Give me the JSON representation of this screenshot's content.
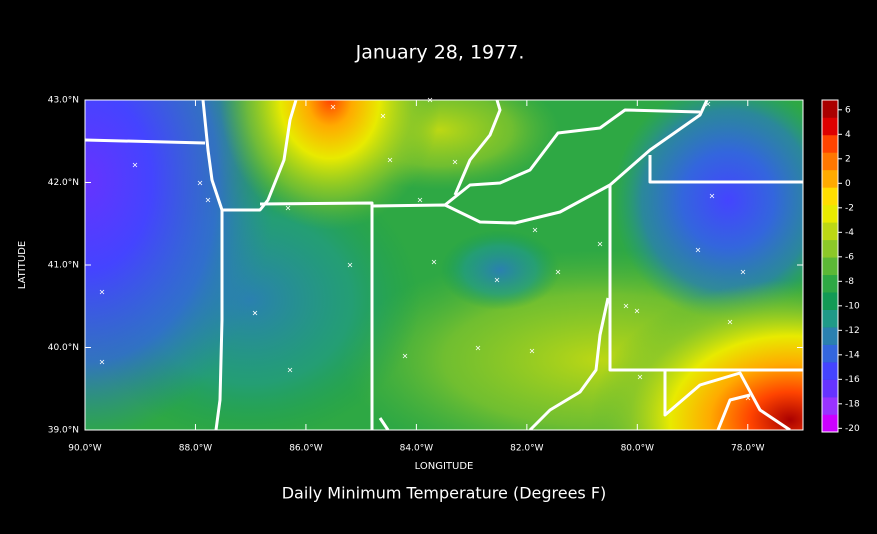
{
  "map": {
    "title": "January 28, 1977.",
    "subtitle": "Daily Minimum Temperature (Degrees F)",
    "x_label": "LONGITUDE",
    "y_label": "LATITUDE",
    "xlim": [
      -90,
      -77
    ],
    "ylim": [
      39,
      43
    ],
    "xticks": [
      {
        "value": -90,
        "label": "90.0°W"
      },
      {
        "value": -88,
        "label": "88.0°W"
      },
      {
        "value": -86,
        "label": "86.0°W"
      },
      {
        "value": -84,
        "label": "84.0°W"
      },
      {
        "value": -82,
        "label": "82.0°W"
      },
      {
        "value": -80,
        "label": "80.0°W"
      },
      {
        "value": -78,
        "label": "78.0°W"
      }
    ],
    "yticks": [
      {
        "value": 39,
        "label": "39.0°N"
      },
      {
        "value": 40,
        "label": "40.0°N"
      },
      {
        "value": 41,
        "label": "41.0°N"
      },
      {
        "value": 42,
        "label": "42.0°N"
      },
      {
        "value": 43,
        "label": "43.0°N"
      }
    ],
    "colorbar": {
      "clim": [
        -20.3,
        6.8
      ],
      "ticks": [
        -20,
        -18,
        -16,
        -14,
        -12,
        -10,
        -8,
        -6,
        -4,
        -2,
        0,
        2,
        4,
        6
      ],
      "colors": [
        "#cc00ff",
        "#9933ff",
        "#6633ff",
        "#4444ff",
        "#3366dd",
        "#2a80b0",
        "#1f9a88",
        "#129a55",
        "#2ea844",
        "#5cb836",
        "#8cc828",
        "#bcd814",
        "#e8ea00",
        "#ffdd00",
        "#ffaa00",
        "#ff7700",
        "#ff4400",
        "#dd0000",
        "#aa0000"
      ]
    }
  }
}
